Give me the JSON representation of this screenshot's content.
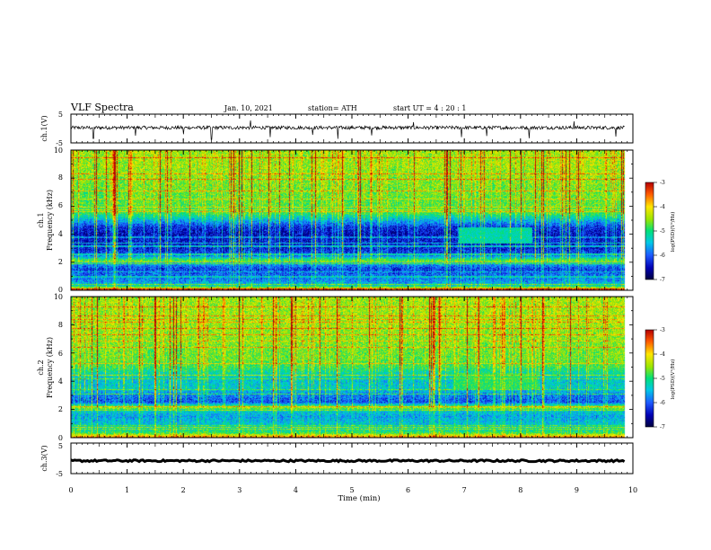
{
  "header": {
    "title": "VLF Spectra",
    "date": "Jan. 10, 2021",
    "station": "station= ATH",
    "start": "start UT =  4 : 20 : 1"
  },
  "colors": {
    "colormap": [
      "#000040",
      "#0000b4",
      "#1e5aff",
      "#00c8e6",
      "#00e07a",
      "#9be600",
      "#ffe600",
      "#ff5a00",
      "#b40000"
    ],
    "trace": "#000000",
    "frame": "#000000"
  },
  "chart_data": [
    {
      "id": "ch1-voltage",
      "type": "line",
      "ylabel": "ch.1(V)",
      "yticks": [
        "5",
        "-5"
      ],
      "ylim": [
        -5,
        5
      ],
      "xlim": [
        0,
        10
      ],
      "description_values": {
        "baseline_v": 0.3,
        "noise_amplitude_v": 0.6,
        "spikes_min": [
          0.4,
          1.15,
          2.0,
          2.5,
          3.2,
          3.55,
          4.3,
          4.75,
          5.35,
          6.1,
          6.95,
          7.4,
          8.15,
          8.95,
          9.7
        ],
        "spike_values_v": [
          -3.5,
          -2.5,
          -2.0,
          -3.8,
          2.8,
          -3.0,
          -2.2,
          -3.6,
          -2.4,
          2.2,
          -3.0,
          -2.6,
          -3.4,
          2.5,
          -2.8
        ]
      }
    },
    {
      "id": "ch1-spectrogram",
      "type": "heatmap",
      "ylabel_top": "ch.1",
      "ylabel": "Frequency (kHz)",
      "ylim": [
        0,
        10
      ],
      "yticks": [
        "0",
        "2",
        "4",
        "6",
        "8",
        "10"
      ],
      "xlim": [
        0,
        10
      ],
      "colorbar": {
        "label": "log(PSD)(V²/Hz)",
        "ticks": [
          "-3",
          "-4",
          "-5",
          "-6",
          "-7"
        ],
        "range": [
          -7,
          -3
        ]
      },
      "profile_freq_khz": [
        0.0,
        0.3,
        0.6,
        1.0,
        1.5,
        1.9,
        2.1,
        2.5,
        3.0,
        3.5,
        4.0,
        4.5,
        5.0,
        5.5,
        6.0,
        7.0,
        8.0,
        9.0,
        10.0
      ],
      "profile_log_psd": [
        -3.6,
        -5.5,
        -5.9,
        -6.1,
        -6.3,
        -5.8,
        -4.8,
        -6.2,
        -6.5,
        -6.5,
        -6.6,
        -6.4,
        -5.7,
        -5.0,
        -4.9,
        -4.8,
        -4.7,
        -4.6,
        -4.6
      ],
      "feature": {
        "freq_khz": 3.9,
        "time_min": [
          6.9,
          8.2
        ],
        "log_psd": -5.2
      }
    },
    {
      "id": "ch2-spectrogram",
      "type": "heatmap",
      "ylabel_top": "ch.2",
      "ylabel": "Frequency (kHz)",
      "ylim": [
        0,
        10
      ],
      "yticks": [
        "0",
        "2",
        "4",
        "6",
        "8",
        "10"
      ],
      "xlim": [
        0,
        10
      ],
      "colorbar": {
        "label": "log(PSD)(V²/Hz)",
        "ticks": [
          "-3",
          "-4",
          "-5",
          "-6",
          "-7"
        ],
        "range": [
          -7,
          -3
        ]
      },
      "profile_freq_khz": [
        0.0,
        0.3,
        0.6,
        1.0,
        1.5,
        1.9,
        2.1,
        2.5,
        3.0,
        3.5,
        4.0,
        4.5,
        5.0,
        5.5,
        6.0,
        7.0,
        8.0,
        9.0,
        10.0
      ],
      "profile_log_psd": [
        -3.8,
        -5.0,
        -5.4,
        -5.6,
        -5.8,
        -5.5,
        -4.6,
        -6.2,
        -6.0,
        -5.5,
        -5.6,
        -5.4,
        -5.0,
        -4.8,
        -4.8,
        -4.7,
        -4.6,
        -4.6,
        -4.6
      ],
      "feature": {
        "freq_khz": 4.0,
        "time_min": [
          6.8,
          8.3
        ],
        "log_psd": -4.9
      }
    },
    {
      "id": "ch3-voltage",
      "type": "line",
      "ylabel": "ch.3(V)",
      "yticks": [
        "5",
        "-5"
      ],
      "ylim": [
        -5,
        5
      ],
      "xlim": [
        0,
        10
      ],
      "description_values": {
        "constant_v": -0.8,
        "noise_amplitude_v": 0.3
      }
    }
  ],
  "xaxis": {
    "label": "Time (min)",
    "ticks": [
      "0",
      "1",
      "2",
      "3",
      "4",
      "5",
      "6",
      "7",
      "8",
      "9",
      "10"
    ],
    "data_end_min": 9.85
  }
}
